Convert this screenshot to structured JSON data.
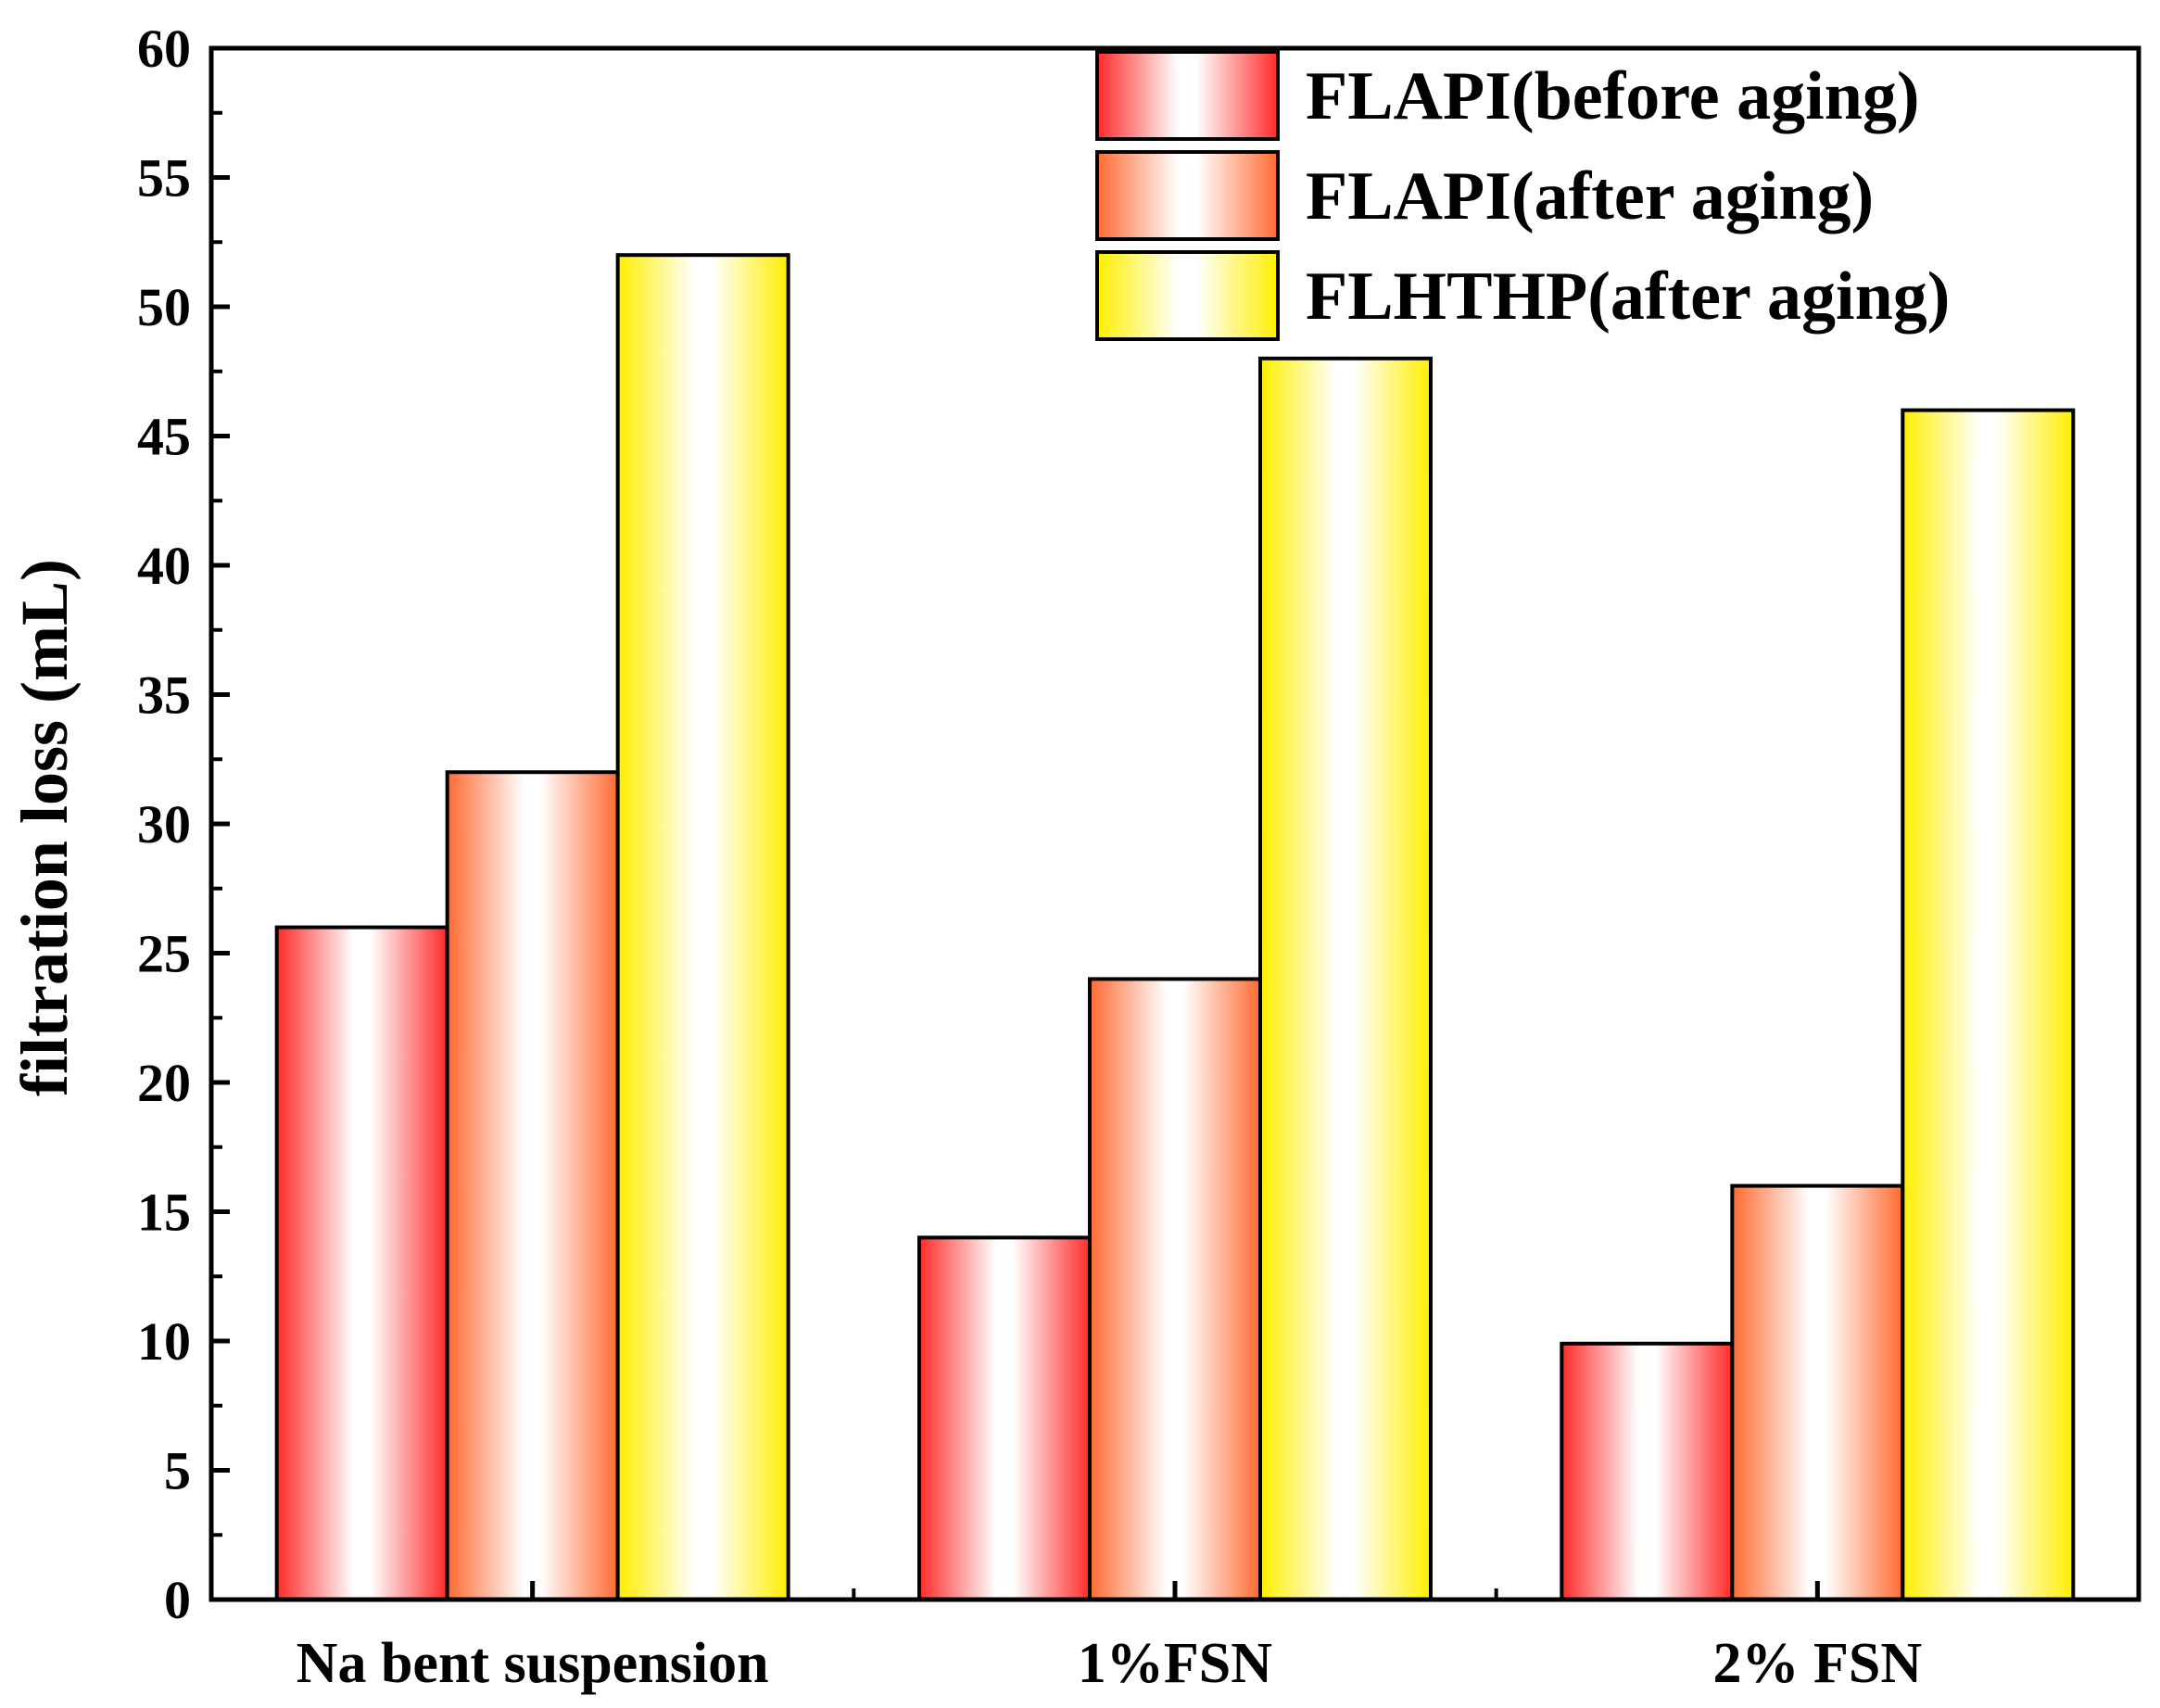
{
  "chart_data": {
    "type": "bar",
    "title": "",
    "xlabel": "",
    "ylabel": "filtration loss (mL)",
    "ylim": [
      0,
      60
    ],
    "yticks": [
      0,
      5,
      10,
      15,
      20,
      25,
      30,
      35,
      40,
      45,
      50,
      55,
      60
    ],
    "categories": [
      "Na bent suspension",
      "1%FSN",
      "2% FSN"
    ],
    "series": [
      {
        "name": "FLAPI(before aging)",
        "values": [
          26,
          14,
          9.9
        ],
        "color": "#ff2a2a"
      },
      {
        "name": "FLAPI(after aging)",
        "values": [
          32,
          24,
          16
        ],
        "color": "#ff6a32"
      },
      {
        "name": "FLHTHP(after aging)",
        "values": [
          52,
          48,
          46
        ],
        "color": "#ffee00"
      }
    ],
    "legend_position": "top-right",
    "grid": false
  }
}
